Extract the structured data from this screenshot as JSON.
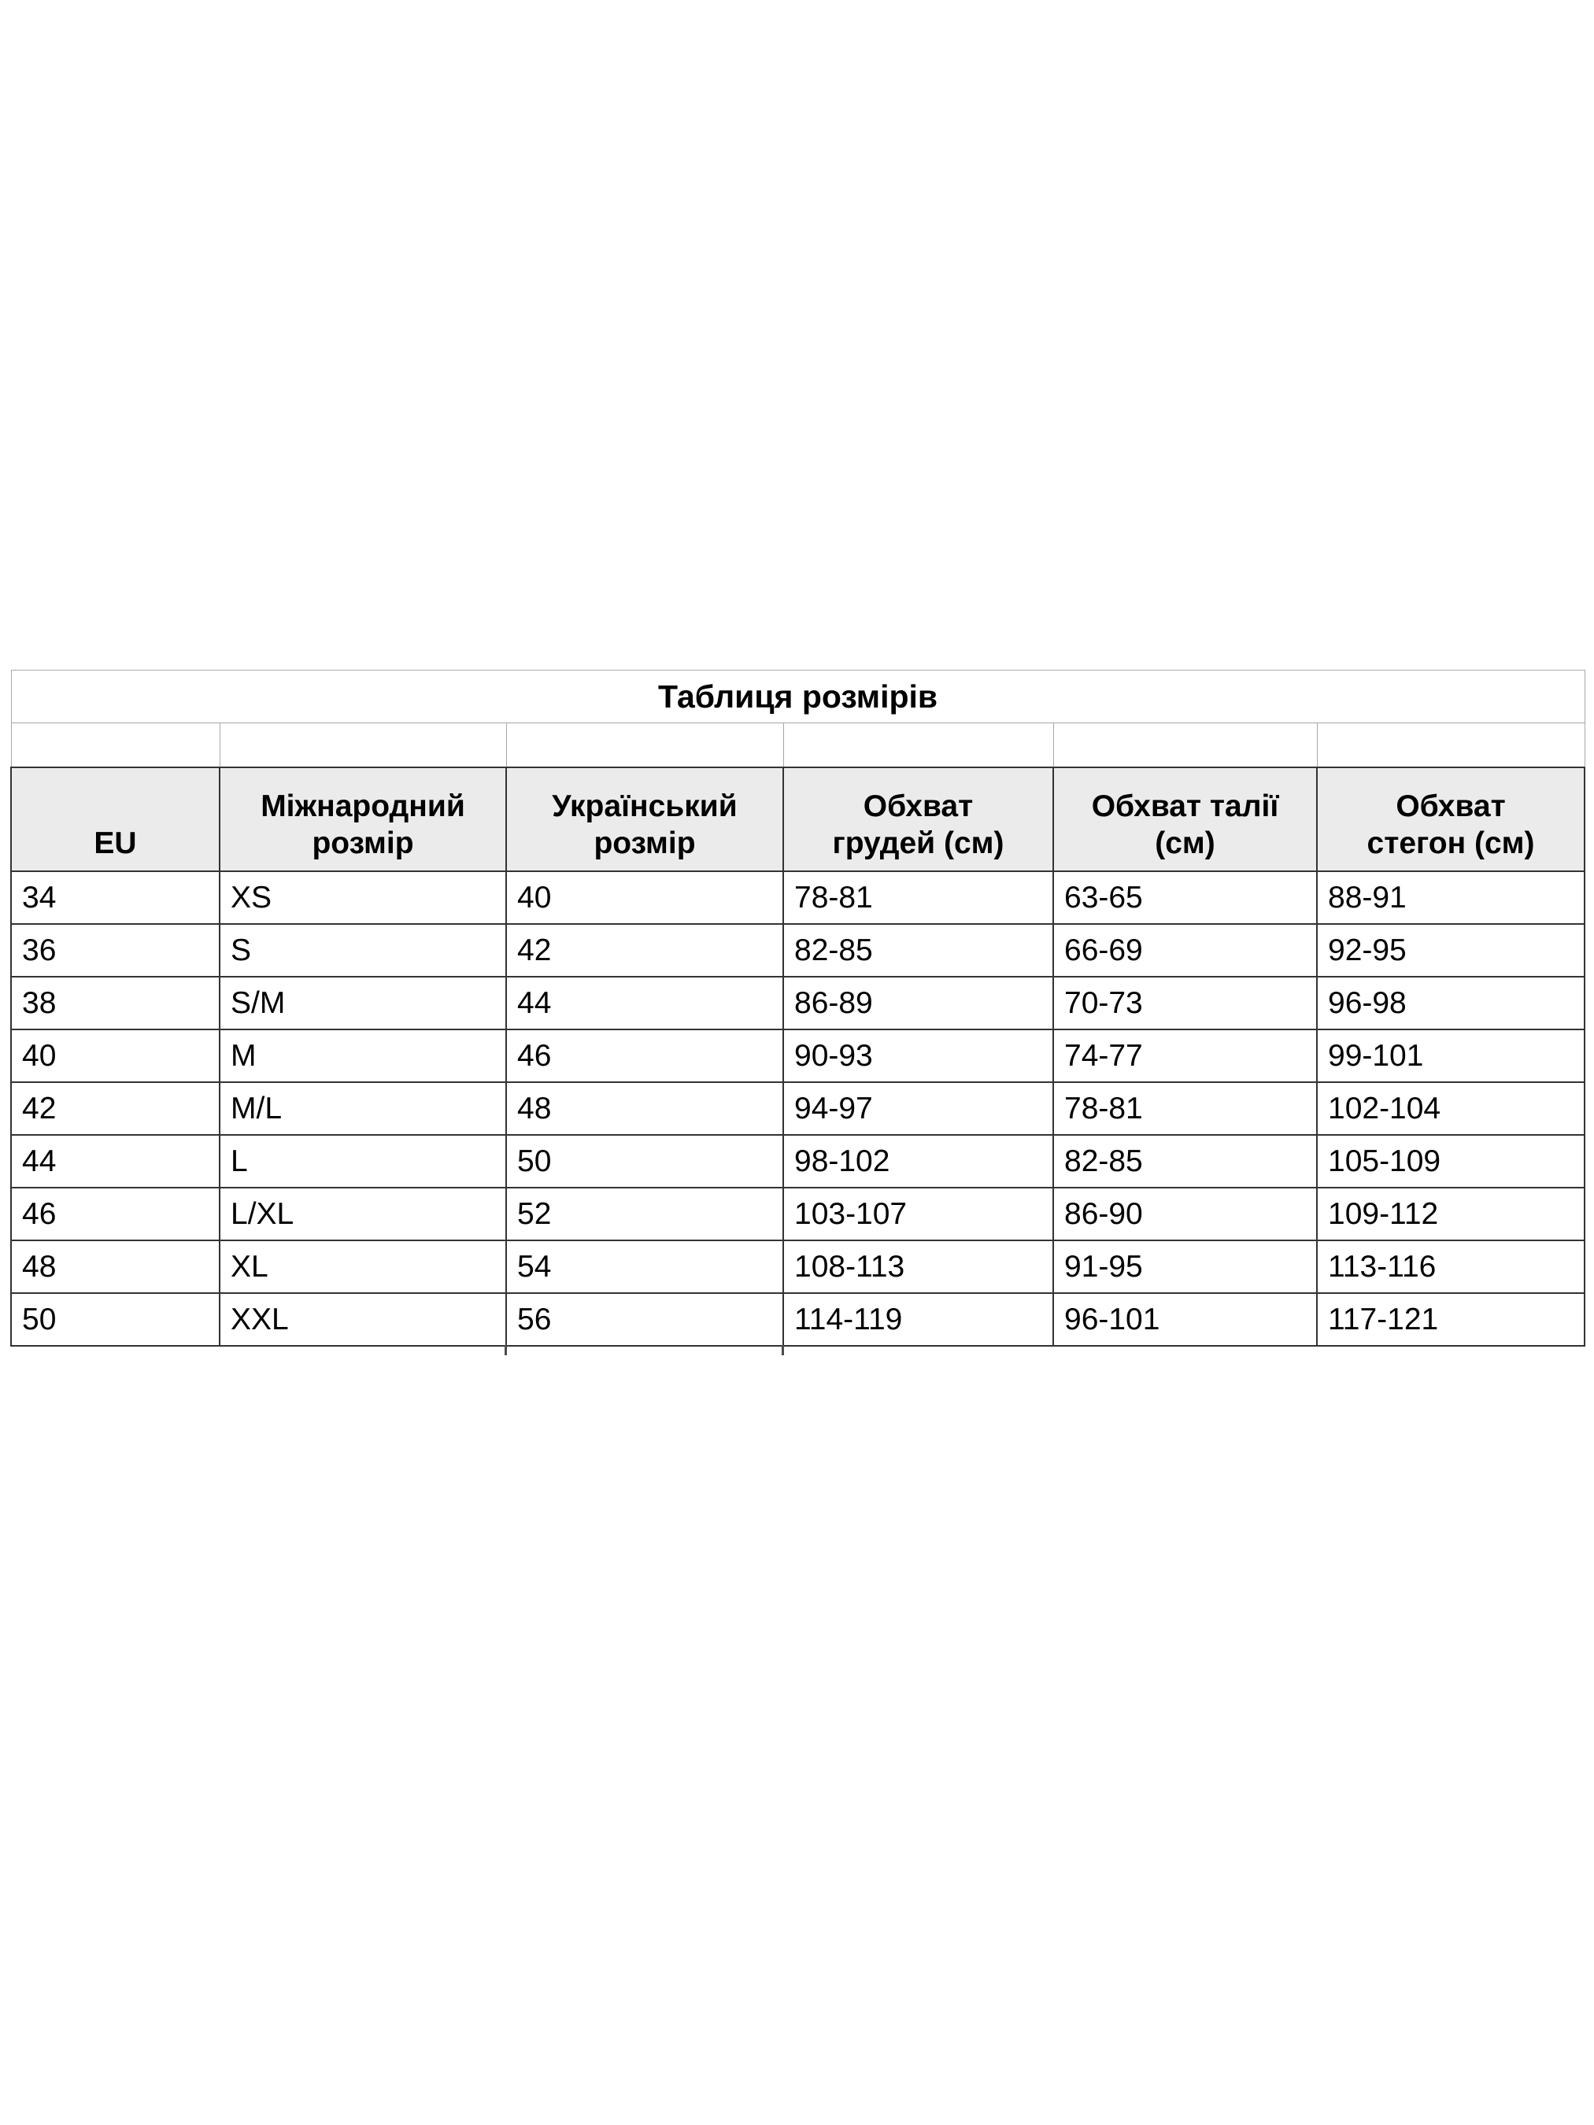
{
  "table": {
    "title": "Таблиця розмірів",
    "columns": [
      {
        "id": "eu",
        "lines": [
          "EU"
        ]
      },
      {
        "id": "international-size",
        "lines": [
          "Міжнародний",
          "розмір"
        ]
      },
      {
        "id": "ukrainian-size",
        "lines": [
          "Український",
          "розмір"
        ]
      },
      {
        "id": "chest",
        "lines": [
          "Обхват",
          "грудей (см)"
        ]
      },
      {
        "id": "waist",
        "lines": [
          "Обхват талії",
          "(см)"
        ]
      },
      {
        "id": "hips",
        "lines": [
          "Обхват",
          "стегон (см)"
        ]
      }
    ],
    "rows": [
      [
        "34",
        "XS",
        "40",
        "78-81",
        "63-65",
        "88-91"
      ],
      [
        "36",
        "S",
        "42",
        "82-85",
        "66-69",
        "92-95"
      ],
      [
        "38",
        "S/M",
        "44",
        "86-89",
        "70-73",
        "96-98"
      ],
      [
        "40",
        "M",
        "46",
        "90-93",
        "74-77",
        "99-101"
      ],
      [
        "42",
        "M/L",
        "48",
        "94-97",
        "78-81",
        "102-104"
      ],
      [
        "44",
        "L",
        "50",
        "98-102",
        "82-85",
        "105-109"
      ],
      [
        "46",
        "L/XL",
        "52",
        "103-107",
        "86-90",
        "109-112"
      ],
      [
        "48",
        "XL",
        "54",
        "108-113",
        "91-95",
        "113-116"
      ],
      [
        "50",
        "XXL",
        "56",
        "114-119",
        "96-101",
        "117-121"
      ]
    ]
  },
  "colors": {
    "page_background": "#ffffff",
    "header_background": "#ebebeb",
    "dark_border": "#333333",
    "light_border": "#a8a8a8",
    "text": "#000000"
  }
}
